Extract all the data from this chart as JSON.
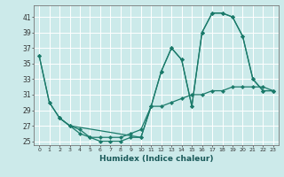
{
  "xlabel": "Humidex (Indice chaleur)",
  "bg_color": "#cceaea",
  "grid_color": "#ffffff",
  "line_color": "#1a7a6a",
  "xlim": [
    -0.5,
    23.5
  ],
  "ylim": [
    24.5,
    42.5
  ],
  "yticks": [
    25,
    27,
    29,
    31,
    33,
    35,
    37,
    39,
    41
  ],
  "xticks": [
    0,
    1,
    2,
    3,
    4,
    5,
    6,
    7,
    8,
    9,
    10,
    11,
    12,
    13,
    14,
    15,
    16,
    17,
    18,
    19,
    20,
    21,
    22,
    23
  ],
  "line1_x": [
    0,
    1,
    2,
    3,
    4,
    5,
    6,
    7,
    8,
    9,
    10,
    11,
    12,
    13,
    14,
    15,
    16,
    17,
    18,
    19,
    20,
    21,
    22,
    23
  ],
  "line1_y": [
    36.0,
    30.0,
    28.0,
    27.0,
    26.5,
    25.5,
    25.5,
    25.5,
    25.5,
    26.0,
    26.5,
    29.5,
    29.5,
    30.0,
    30.5,
    31.0,
    31.0,
    31.5,
    31.5,
    32.0,
    32.0,
    32.0,
    32.0,
    31.5
  ],
  "line2_x": [
    0,
    1,
    2,
    3,
    4,
    5,
    6,
    7,
    8,
    9,
    10,
    11,
    12,
    13,
    14,
    15,
    16,
    17,
    18,
    19,
    20,
    21,
    22,
    23
  ],
  "line2_y": [
    36.0,
    30.0,
    28.0,
    27.0,
    26.0,
    25.5,
    25.0,
    25.0,
    25.0,
    25.5,
    25.5,
    29.5,
    34.0,
    37.0,
    35.5,
    29.5,
    39.0,
    41.5,
    41.5,
    41.0,
    38.5,
    33.0,
    31.5,
    31.5
  ],
  "line3_x": [
    2,
    3,
    10,
    11,
    12,
    13,
    14,
    15,
    16,
    17,
    18,
    19,
    20,
    21,
    22,
    23
  ],
  "line3_y": [
    28.0,
    27.0,
    25.5,
    29.5,
    34.0,
    37.0,
    35.5,
    29.5,
    39.0,
    41.5,
    41.5,
    41.0,
    38.5,
    33.0,
    31.5,
    31.5
  ]
}
